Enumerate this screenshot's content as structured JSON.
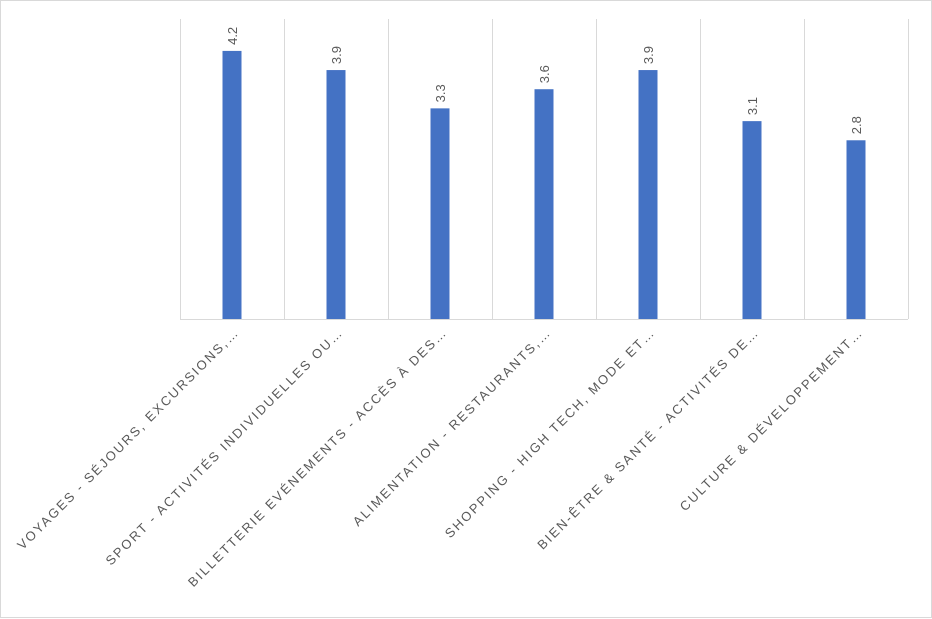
{
  "chart_data": {
    "type": "bar",
    "title": "",
    "xlabel": "",
    "ylabel": "",
    "categories": [
      "VOYAGES - SÉJOURS, EXCURSIONS,…",
      "SPORT - ACTIVITÉS INDIVIDUELLES OU…",
      "BILLETTERIE EVÉNEMENTS - ACCÈS À DES…",
      "ALIMENTATION - RESTAURANTS,…",
      "SHOPPING - HIGH TECH, MODE ET…",
      "BIEN-ÊTRE & SANTÉ - ACTIVITÉS DE…",
      "CULTURE & DÉVELOPPEMENT…"
    ],
    "values": [
      4.2,
      3.9,
      3.3,
      3.6,
      3.9,
      3.1,
      2.8
    ],
    "data_labels": [
      "4.2",
      "3.9",
      "3.3",
      "3.6",
      "3.9",
      "3.1",
      "2.8"
    ],
    "ylim": [
      0,
      4.7
    ],
    "grid": "vertical category separators",
    "legend": "none",
    "colors": {
      "bar": "#4472C4",
      "gridline": "#d9d9d9",
      "text": "#595959"
    }
  }
}
